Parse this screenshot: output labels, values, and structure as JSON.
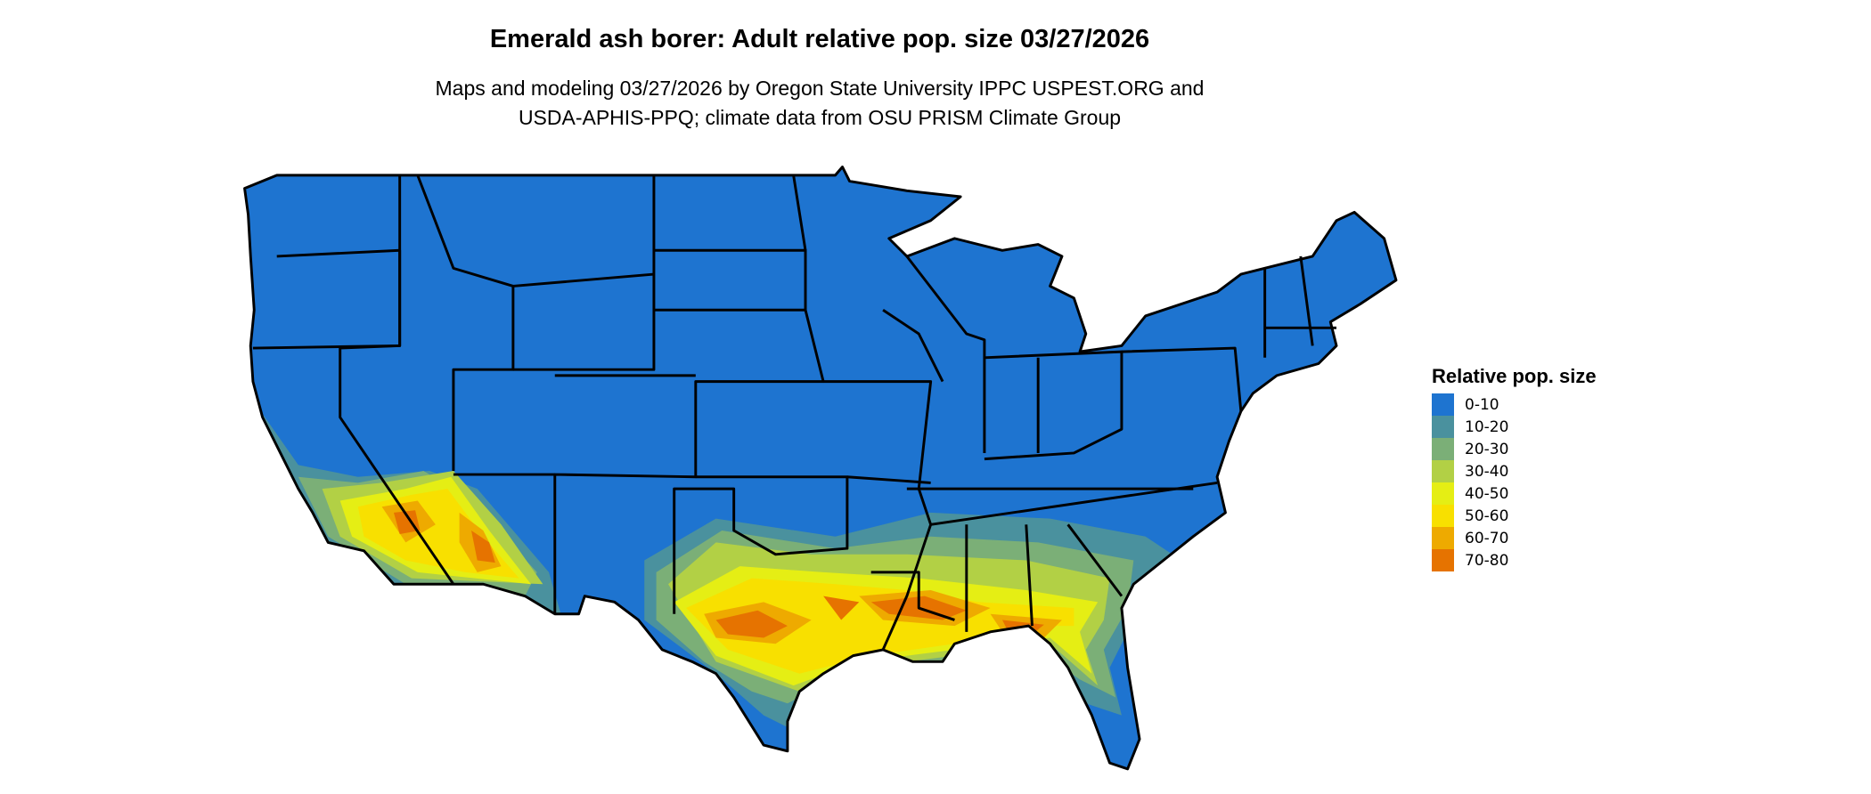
{
  "title": "Emerald ash borer: Adult relative pop. size 03/27/2026",
  "subtitle_lines": [
    "Maps and modeling 03/27/2026 by Oregon State University IPPC USPEST.ORG and",
    "USDA-APHIS-PPQ; climate data from OSU PRISM Climate Group"
  ],
  "legend": {
    "title": "Relative pop. size",
    "items": [
      {
        "label": "0-10",
        "color": "#1E74D0"
      },
      {
        "label": "10-20",
        "color": "#4A919E"
      },
      {
        "label": "20-30",
        "color": "#7BAF77"
      },
      {
        "label": "30-40",
        "color": "#B2D045"
      },
      {
        "label": "40-50",
        "color": "#E5EE14"
      },
      {
        "label": "50-60",
        "color": "#F8E000"
      },
      {
        "label": "60-70",
        "color": "#EEAA00"
      },
      {
        "label": "70-80",
        "color": "#E67300"
      }
    ]
  },
  "map": {
    "region": "Contiguous United States",
    "state_boundaries": true,
    "highest_values_region": "Gulf Coast (Texas, Louisiana, Mississippi, Alabama, north Florida) and desert Southwest (southern California, Arizona)"
  }
}
